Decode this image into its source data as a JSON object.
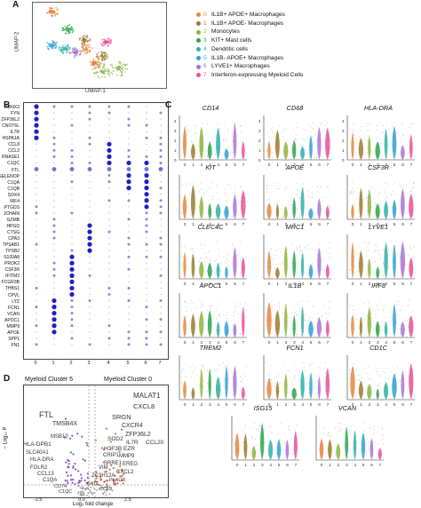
{
  "panel_a": {
    "letter": "A",
    "y_axis": "UMAP-2",
    "x_axis": "UMAP-1",
    "legend": [
      {
        "num": "0",
        "label": "IL1B+ APOE+ Macrophages",
        "color": "#e8863a"
      },
      {
        "num": "1",
        "label": "IL1B+ APOE- Macrophages",
        "color": "#9c7a2e"
      },
      {
        "num": "2",
        "label": "Monocytes",
        "color": "#8cb43a"
      },
      {
        "num": "3",
        "label": "KIT+ Mast cells",
        "color": "#2ea24a"
      },
      {
        "num": "4",
        "label": "Dendritic cells",
        "color": "#2eb0a4"
      },
      {
        "num": "5",
        "label": "IL1B- APOE+ Macrophages",
        "color": "#2f9fd8"
      },
      {
        "num": "6",
        "label": "LYVE1+ Macrophages",
        "color": "#a874d8"
      },
      {
        "num": "7",
        "label": "Interferon-expressing Myeloid Cells",
        "color": "#e8509a"
      }
    ]
  },
  "panel_b": {
    "letter": "B",
    "genes": [
      "RUNX3",
      "FYN",
      "ZFP36L2",
      "CNOT6L",
      "IL7R",
      "HSPA1A",
      "CCL8",
      "CCL2",
      "RNASE1",
      "C1QC",
      "FTL",
      "SELENOP",
      "C1QA",
      "C1QB",
      "SOX4",
      "IRF4",
      "PTGDS",
      "JCHAIN",
      "GZMB",
      "HPGD",
      "CTSG",
      "CPA3",
      "TPSAB1",
      "TPSB2",
      "S100A8",
      "PROK2",
      "CSF3R",
      "IFITM2",
      "FCGR3B",
      "THBS1",
      "CPVL",
      "LYZ",
      "FCN1",
      "VCAN",
      "APOC1",
      "MMP9",
      "APOE",
      "SPP1",
      "FN1"
    ],
    "clusters": [
      "0",
      "1",
      "2",
      "3",
      "4",
      "5",
      "6",
      "7"
    ]
  },
  "panel_c": {
    "letter": "C",
    "genes": [
      "CD14",
      "CD68",
      "HLA-DRA",
      "KIT",
      "APOE",
      "CSF3R",
      "CLEC4C",
      "MRC1",
      "LYVE1",
      "APOC1",
      "IL1B",
      "IRF8",
      "TREM2",
      "FCN1",
      "CD1C",
      "ISG15",
      "VCAN"
    ],
    "y_ticks": [
      "0",
      "1",
      "2",
      "3",
      "4"
    ],
    "x_ticks": [
      "0",
      "1",
      "2",
      "3",
      "4",
      "5",
      "6",
      "7"
    ]
  },
  "panel_d": {
    "letter": "D",
    "left_title": "Myeloid Cluster 5",
    "right_title": "Myeloid Cluster 0",
    "y_axis": "− Log₁₀ P",
    "x_axis": "Log₂ fold change",
    "x_ticks": [
      "-2.5",
      "0.0",
      "2.5"
    ],
    "left_labels": [
      "FTL",
      "TMSB4X",
      "HLA-DPB1",
      "MSB10",
      "SLC40A1",
      "HLA-DRA",
      "FOLR2",
      "CCL13",
      "C1QA",
      "CD74",
      "C1QC"
    ],
    "right_labels": [
      "MALAT1",
      "CXCL8",
      "SRGN",
      "CXCR4",
      "ZFP36L2",
      "SOD2",
      "IL7R",
      "CCL20",
      "H3F3B",
      "EZR",
      "CRIP1",
      "MMP9",
      "SRRE1",
      "EREG",
      "VIM",
      "CXCL2",
      "ZC3H12A",
      "PLAUR",
      "SAT1",
      "CCL3"
    ]
  }
}
